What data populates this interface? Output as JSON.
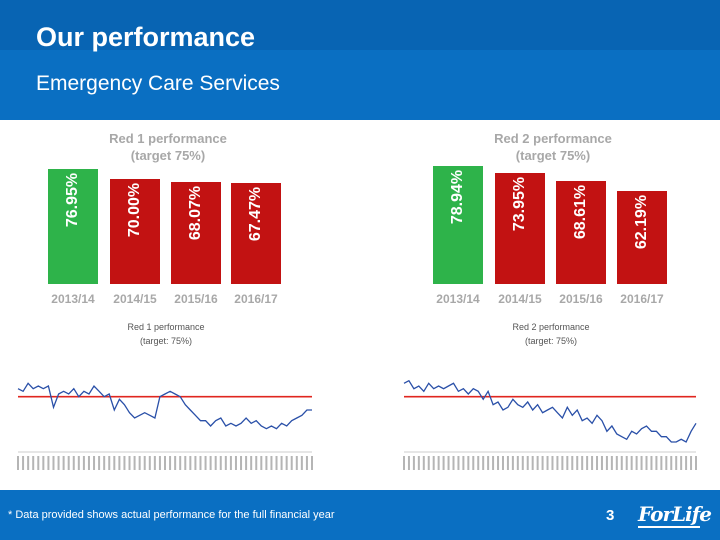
{
  "slide": {
    "title": "Our performance",
    "subtitle": "Emergency Care Services",
    "footnote": "* Data provided shows actual performance for the full financial year",
    "page_number": "3",
    "logo_text": "ForLife"
  },
  "colors": {
    "header": "#0a6fc2",
    "green": "#2eb34a",
    "red": "#c21212",
    "target_line": "#e0261f",
    "series_line": "#2a50a8"
  },
  "chart_data": [
    {
      "type": "bar",
      "title_line1": "Red 1 performance",
      "title_line2": "(target 75%)",
      "categories": [
        "2013/14",
        "2014/15",
        "2015/16",
        "2016/17"
      ],
      "values": [
        76.95,
        70.0,
        68.07,
        67.47
      ],
      "labels": [
        "76.95%",
        "70.00%",
        "68.07%",
        "67.47%"
      ],
      "bar_colors": [
        "#2eb34a",
        "#c21212",
        "#c21212",
        "#c21212"
      ],
      "target": 75
    },
    {
      "type": "bar",
      "title_line1": "Red 2 performance",
      "title_line2": "(target 75%)",
      "categories": [
        "2013/14",
        "2014/15",
        "2015/16",
        "2016/17"
      ],
      "values": [
        78.94,
        73.95,
        68.61,
        62.19
      ],
      "labels": [
        "78.94%",
        "73.95%",
        "68.61%",
        "62.19%"
      ],
      "bar_colors": [
        "#2eb34a",
        "#c21212",
        "#c21212",
        "#c21212"
      ],
      "target": 75
    },
    {
      "type": "line",
      "title_line1": "Red 1 performance",
      "title_line2": "(target: 75%)",
      "target": 75,
      "ylim": [
        55,
        85
      ],
      "values": [
        78,
        77,
        80,
        78,
        79,
        78,
        79,
        71,
        76,
        77,
        76,
        78,
        75,
        77,
        76,
        79,
        77,
        75,
        76,
        70,
        74,
        72,
        69,
        67,
        68,
        69,
        68,
        67,
        75,
        76,
        77,
        76,
        75,
        72,
        70,
        68,
        66,
        66,
        64,
        66,
        67,
        64,
        65,
        64,
        65,
        67,
        65,
        66,
        64,
        63,
        64,
        63,
        65,
        64,
        66,
        67,
        68,
        70,
        70
      ]
    },
    {
      "type": "line",
      "title_line1": "Red 2 performance",
      "title_line2": "(target: 75%)",
      "target": 75,
      "ylim": [
        55,
        85
      ],
      "values": [
        80,
        81,
        78,
        79,
        77,
        80,
        78,
        79,
        78,
        79,
        80,
        77,
        78,
        76,
        78,
        77,
        74,
        77,
        72,
        73,
        70,
        71,
        74,
        72,
        71,
        73,
        70,
        72,
        69,
        70,
        71,
        69,
        67,
        71,
        68,
        70,
        66,
        67,
        65,
        68,
        66,
        62,
        64,
        61,
        60,
        59,
        62,
        61,
        63,
        64,
        62,
        62,
        60,
        60,
        58,
        58,
        59,
        58,
        62,
        65
      ]
    }
  ]
}
